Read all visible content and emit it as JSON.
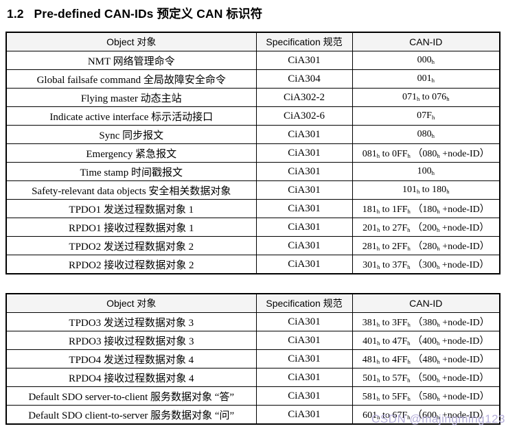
{
  "page": {
    "title": "1.2   Pre-defined CAN-IDs 预定义 CAN 标识符",
    "watermark": "CSDN @majingming123",
    "colors": {
      "text": "#000000",
      "border": "#000000",
      "watermark": "#b6afda",
      "background": "#ffffff"
    }
  },
  "table1": {
    "headers": {
      "object": "Object 对象",
      "spec": "Specification 规范",
      "canid": "CAN-ID"
    },
    "rows": [
      {
        "object": "NMT 网络管理命令",
        "spec": "CiA301",
        "canid": "000_h"
      },
      {
        "object": "Global failsafe command 全局故障安全命令",
        "spec": "CiA304",
        "canid": "001_h"
      },
      {
        "object": "Flying master 动态主站",
        "spec": "CiA302-2",
        "canid": "071_h to 076_h"
      },
      {
        "object": "Indicate active interface 标示活动接口",
        "spec": "CiA302-6",
        "canid": "07F_h"
      },
      {
        "object": "Sync 同步报文",
        "spec": "CiA301",
        "canid": "080_h"
      },
      {
        "object": "Emergency 紧急报文",
        "spec": "CiA301",
        "canid": "081_h to 0FF_h （080_h +node-ID）"
      },
      {
        "object": "Time stamp 时间戳报文",
        "spec": "CiA301",
        "canid": "100_h"
      },
      {
        "object": "Safety-relevant data objects 安全相关数据对象",
        "spec": "CiA301",
        "canid": "101_h to 180_h"
      },
      {
        "object": "TPDO1 发送过程数据对象 1",
        "spec": "CiA301",
        "canid": "181_h to 1FF_h （180_h +node-ID）"
      },
      {
        "object": "RPDO1 接收过程数据对象 1",
        "spec": "CiA301",
        "canid": "201_h to 27F_h （200_h +node-ID）"
      },
      {
        "object": "TPDO2 发送过程数据对象 2",
        "spec": "CiA301",
        "canid": "281_h to 2FF_h （280_h +node-ID）"
      },
      {
        "object": "RPDO2 接收过程数据对象 2",
        "spec": "CiA301",
        "canid": "301_h to 37F_h （300_h +node-ID）"
      }
    ]
  },
  "table2": {
    "headers": {
      "object": "Object 对象",
      "spec": "Specification 规范",
      "canid": "CAN-ID"
    },
    "rows": [
      {
        "object": "TPDO3 发送过程数据对象 3",
        "spec": "CiA301",
        "canid": "381_h to 3FF_h （380_h +node-ID）"
      },
      {
        "object": "RPDO3 接收过程数据对象 3",
        "spec": "CiA301",
        "canid": "401_h to 47F_h （400_h +node-ID）"
      },
      {
        "object": "TPDO4 发送过程数据对象 4",
        "spec": "CiA301",
        "canid": "481_h to 4FF_h （480_h +node-ID）"
      },
      {
        "object": "RPDO4 接收过程数据对象 4",
        "spec": "CiA301",
        "canid": "501_h to 57F_h （500_h +node-ID）"
      },
      {
        "object": "Default SDO server-to-client 服务数据对象 “答”",
        "spec": "CiA301",
        "canid": "581_h to 5FF_h （580_h +node-ID）"
      },
      {
        "object": "Default SDO client-to-server 服务数据对象 “问”",
        "spec": "CiA301",
        "canid": "601_h to 67F_h （600_h +node-ID）"
      }
    ]
  }
}
